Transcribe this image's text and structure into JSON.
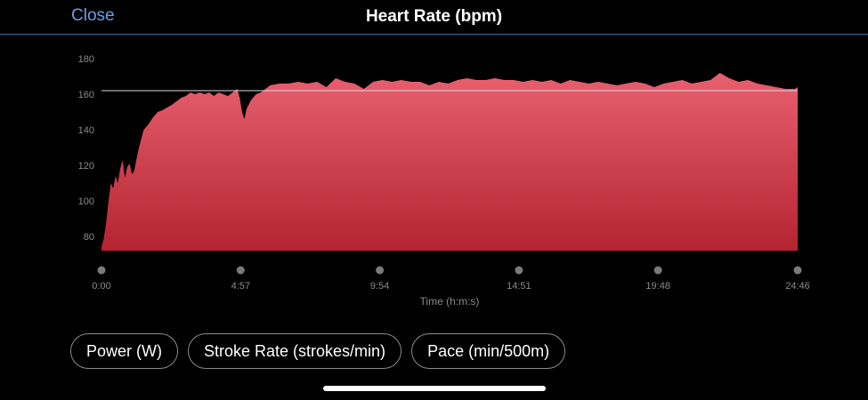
{
  "header": {
    "close_label": "Close",
    "title": "Heart Rate (bpm)"
  },
  "chart_data": {
    "type": "area",
    "title": "Heart Rate (bpm)",
    "xlabel": "Time (h:m:s)",
    "ylabel": "",
    "ylim": [
      72,
      184
    ],
    "xlim": [
      0,
      1486
    ],
    "y_ticks": [
      80,
      100,
      120,
      140,
      160,
      180
    ],
    "x_ticks": [
      {
        "t": 0,
        "label": "0:00"
      },
      {
        "t": 297,
        "label": "4:57"
      },
      {
        "t": 594,
        "label": "9:54"
      },
      {
        "t": 891,
        "label": "14:51"
      },
      {
        "t": 1188,
        "label": "19:48"
      },
      {
        "t": 1486,
        "label": "24:46"
      }
    ],
    "reference_line": 162,
    "grid": false,
    "color": "#e05468",
    "series": [
      {
        "name": "",
        "x": [
          0,
          5,
          10,
          15,
          20,
          25,
          30,
          35,
          40,
          45,
          50,
          55,
          60,
          65,
          70,
          75,
          80,
          90,
          100,
          110,
          120,
          130,
          150,
          170,
          180,
          190,
          200,
          210,
          220,
          230,
          240,
          250,
          260,
          270,
          280,
          290,
          295,
          300,
          305,
          310,
          320,
          330,
          340,
          350,
          360,
          380,
          400,
          420,
          440,
          460,
          480,
          500,
          520,
          540,
          560,
          580,
          600,
          620,
          640,
          660,
          680,
          700,
          720,
          740,
          760,
          780,
          800,
          820,
          840,
          860,
          880,
          900,
          920,
          940,
          960,
          980,
          1000,
          1020,
          1040,
          1060,
          1080,
          1100,
          1120,
          1140,
          1160,
          1180,
          1200,
          1220,
          1240,
          1260,
          1280,
          1300,
          1320,
          1340,
          1360,
          1380,
          1400,
          1420,
          1440,
          1460,
          1480,
          1486
        ],
        "values": [
          74,
          79,
          88,
          100,
          110,
          107,
          114,
          110,
          118,
          123,
          113,
          119,
          121,
          115,
          117,
          124,
          130,
          140,
          143,
          147,
          150,
          151,
          154,
          158,
          159,
          161,
          160,
          161,
          160,
          161,
          159,
          161,
          160,
          159,
          161,
          163,
          158,
          150,
          146,
          152,
          157,
          160,
          161,
          163,
          165,
          166,
          166,
          167,
          166,
          167,
          164,
          169,
          167,
          166,
          163,
          167,
          168,
          167,
          168,
          167,
          167,
          165,
          167,
          166,
          168,
          169,
          168,
          168,
          169,
          168,
          168,
          167,
          168,
          167,
          168,
          166,
          168,
          167,
          166,
          167,
          166,
          165,
          166,
          167,
          166,
          164,
          166,
          167,
          168,
          166,
          167,
          168,
          172,
          169,
          167,
          168,
          166,
          165,
          164,
          163,
          163,
          164
        ]
      }
    ]
  }
}
